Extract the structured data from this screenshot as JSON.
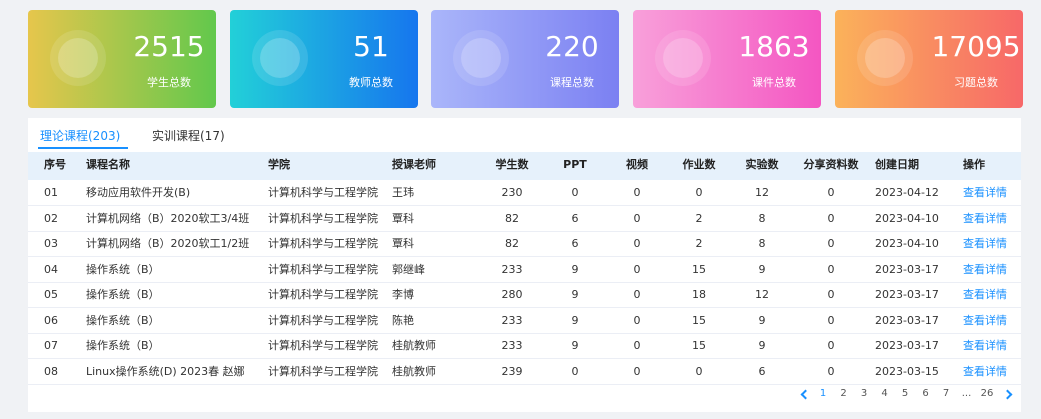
{
  "stats": [
    {
      "value": "2515",
      "label": "学生总数"
    },
    {
      "value": "51",
      "label": "教师总数"
    },
    {
      "value": "220",
      "label": "课程总数"
    },
    {
      "value": "1863",
      "label": "课件总数"
    },
    {
      "value": "17095",
      "label": "习题总数"
    }
  ],
  "tabs": [
    "理论课程(203)",
    "实训课程(17)"
  ],
  "table": {
    "headers": [
      "序号",
      "课程名称",
      "学院",
      "授课老师",
      "学生数",
      "PPT",
      "视频",
      "作业数",
      "实验数",
      "分享资料数",
      "创建日期",
      "操作"
    ],
    "rows": [
      [
        "01",
        "移动应用软件开发(B)",
        "计算机科学与工程学院",
        "王玮",
        230,
        0,
        0,
        0,
        12,
        0,
        "2023-04-12",
        "查看详情"
      ],
      [
        "02",
        "计算机网络（B）2020软工3/4班",
        "计算机科学与工程学院",
        "覃科",
        82,
        6,
        0,
        2,
        8,
        0,
        "2023-04-10",
        "查看详情"
      ],
      [
        "03",
        "计算机网络（B）2020软工1/2班",
        "计算机科学与工程学院",
        "覃科",
        82,
        6,
        0,
        2,
        8,
        0,
        "2023-04-10",
        "查看详情"
      ],
      [
        "04",
        "操作系统（B）",
        "计算机科学与工程学院",
        "郭继峰",
        233,
        9,
        0,
        15,
        9,
        0,
        "2023-03-17",
        "查看详情"
      ],
      [
        "05",
        "操作系统（B）",
        "计算机科学与工程学院",
        "李博",
        280,
        9,
        0,
        18,
        12,
        0,
        "2023-03-17",
        "查看详情"
      ],
      [
        "06",
        "操作系统（B）",
        "计算机科学与工程学院",
        "陈艳",
        233,
        9,
        0,
        15,
        9,
        0,
        "2023-03-17",
        "查看详情"
      ],
      [
        "07",
        "操作系统（B）",
        "计算机科学与工程学院",
        "桂航教师",
        233,
        9,
        0,
        15,
        9,
        0,
        "2023-03-17",
        "查看详情"
      ],
      [
        "08",
        "Linux操作系统(D) 2023春 赵娜",
        "计算机科学与工程学院",
        "桂航教师",
        239,
        0,
        0,
        0,
        6,
        0,
        "2023-03-15",
        "查看详情"
      ]
    ]
  },
  "pagination": [
    "1",
    "2",
    "3",
    "4",
    "5",
    "6",
    "7",
    "...",
    "26"
  ]
}
